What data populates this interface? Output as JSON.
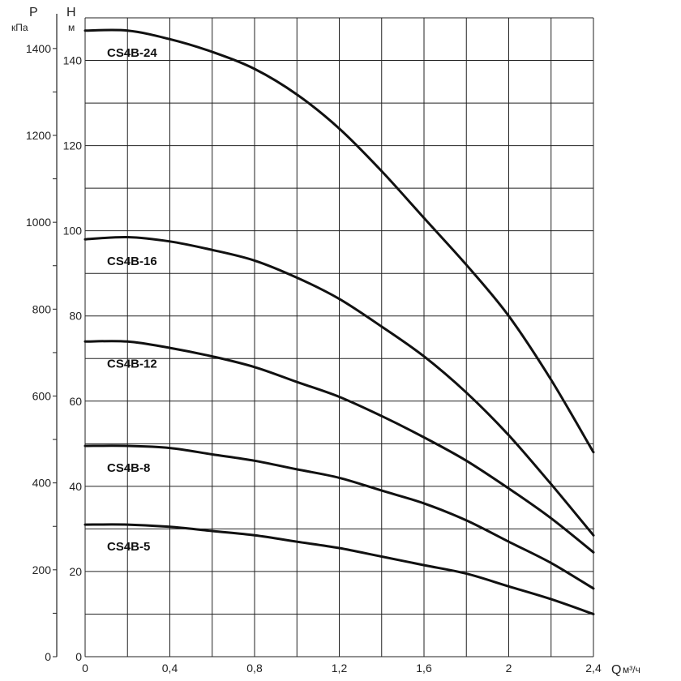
{
  "chart_data": {
    "type": "line",
    "title": "",
    "x_axis": {
      "title": "Q",
      "unit": "м³/ч",
      "range": [
        0,
        2.4
      ],
      "ticks": [
        0,
        0.4,
        0.8,
        1.2,
        1.6,
        2,
        2.4
      ],
      "tick_labels": [
        "0",
        "0,4",
        "0,8",
        "1,2",
        "1,6",
        "2",
        "2,4"
      ],
      "minor_step": 0.2
    },
    "y_axis_left": {
      "title": "P",
      "unit": "кПа",
      "range": [
        0,
        1480
      ],
      "ticks": [
        0,
        200,
        400,
        600,
        800,
        1000,
        1200,
        1400
      ],
      "tick_labels": [
        "0",
        "200",
        "400",
        "600",
        "800",
        "1000",
        "1200",
        "1400"
      ]
    },
    "y_axis_head": {
      "title": "H",
      "unit": "м",
      "range": [
        0,
        150
      ],
      "ticks": [
        0,
        20,
        40,
        60,
        80,
        100,
        120,
        140
      ],
      "tick_labels": [
        "0",
        "20",
        "40",
        "60",
        "80",
        "100",
        "120",
        "140"
      ],
      "grid_step": 10
    },
    "grid": true,
    "series": [
      {
        "name": "CS4B-24",
        "x": [
          0,
          0.2,
          0.4,
          0.6,
          0.8,
          1.0,
          1.2,
          1.4,
          1.6,
          1.8,
          2.0,
          2.2,
          2.4
        ],
        "y": [
          147,
          147,
          145,
          142,
          138,
          132,
          124,
          114,
          103,
          92,
          80,
          65,
          48
        ]
      },
      {
        "name": "CS4B-16",
        "x": [
          0,
          0.2,
          0.4,
          0.6,
          0.8,
          1.0,
          1.2,
          1.4,
          1.6,
          1.8,
          2.0,
          2.2,
          2.4
        ],
        "y": [
          98,
          98.5,
          97.5,
          95.5,
          93,
          89,
          84,
          77.5,
          70.5,
          62,
          52,
          40.5,
          28.5
        ]
      },
      {
        "name": "CS4B-12",
        "x": [
          0,
          0.2,
          0.4,
          0.6,
          0.8,
          1.0,
          1.2,
          1.4,
          1.6,
          1.8,
          2.0,
          2.2,
          2.4
        ],
        "y": [
          74,
          74,
          72.5,
          70.5,
          68,
          64.5,
          61,
          56.5,
          51.5,
          46,
          39.5,
          32.5,
          24.5
        ]
      },
      {
        "name": "CS4B-8",
        "x": [
          0,
          0.2,
          0.4,
          0.6,
          0.8,
          1.0,
          1.2,
          1.4,
          1.6,
          1.8,
          2.0,
          2.2,
          2.4
        ],
        "y": [
          49.5,
          49.5,
          49,
          47.5,
          46,
          44,
          42,
          39,
          36,
          32,
          27,
          22,
          16
        ]
      },
      {
        "name": "CS4B-5",
        "x": [
          0,
          0.2,
          0.4,
          0.6,
          0.8,
          1.0,
          1.2,
          1.4,
          1.6,
          1.8,
          2.0,
          2.2,
          2.4
        ],
        "y": [
          31,
          31,
          30.5,
          29.5,
          28.5,
          27,
          25.5,
          23.5,
          21.5,
          19.5,
          16.5,
          13.5,
          10
        ]
      }
    ]
  }
}
